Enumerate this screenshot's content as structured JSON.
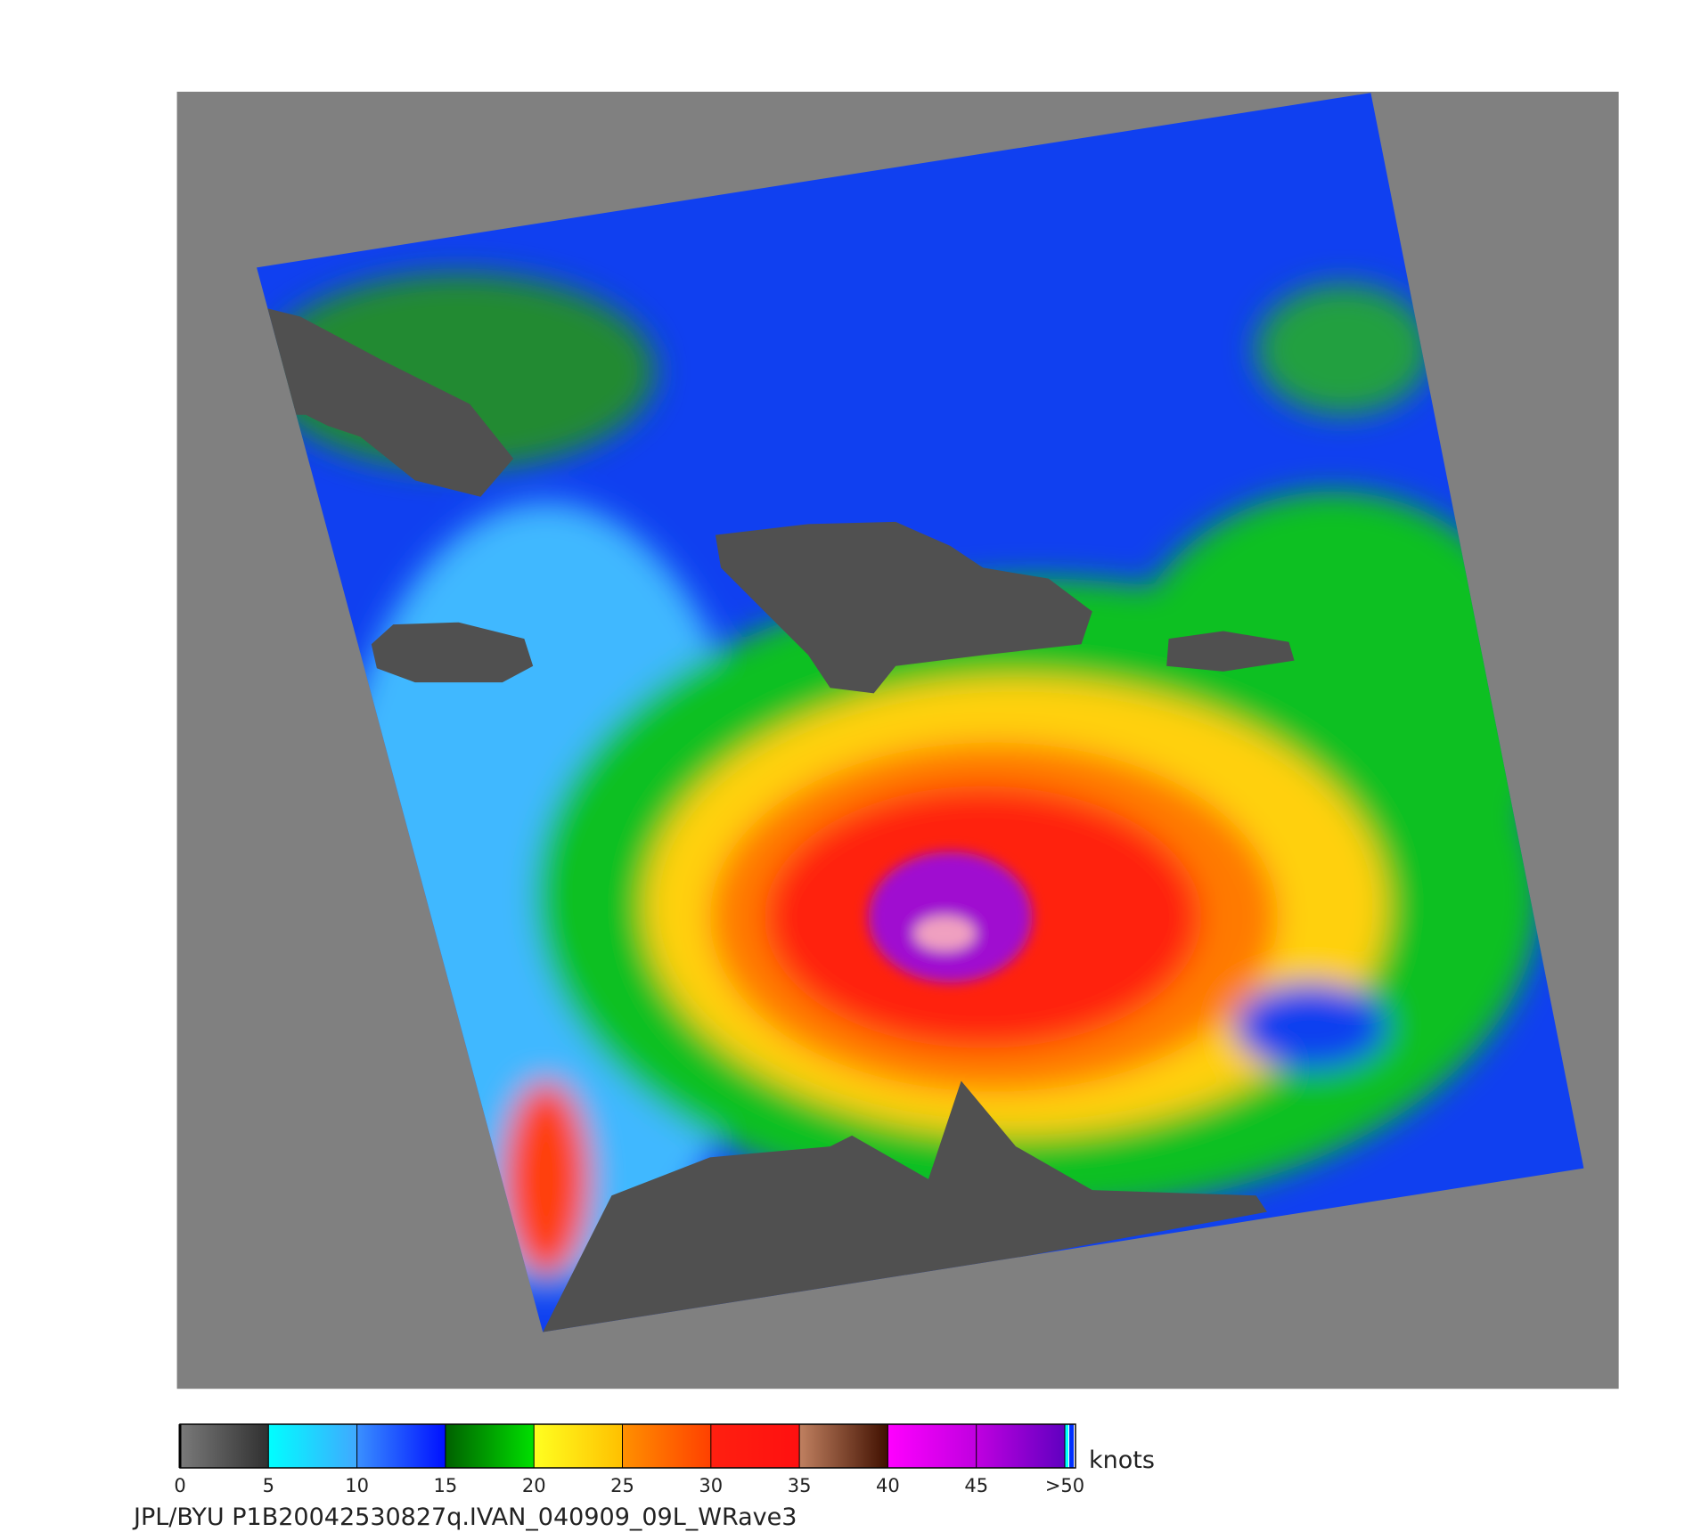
{
  "colorbar": {
    "ticks": [
      0,
      5,
      10,
      15,
      20,
      25,
      30,
      35,
      40,
      45,
      {
        "value": 50,
        "label": ">50"
      }
    ],
    "unit": "knots",
    "colors": [
      [
        "#7a7a7a",
        "#303030"
      ],
      [
        "#00ffff",
        "#40a8ff"
      ],
      [
        "#3a90ff",
        "#0010ff"
      ],
      [
        "#006000",
        "#00e000"
      ],
      [
        "#ffff20",
        "#ffc000"
      ],
      [
        "#ff9000",
        "#ff4000"
      ],
      [
        "#ff2010",
        "#ff1010"
      ],
      [
        "#c08060",
        "#401000"
      ],
      [
        "#ff00ff",
        "#c000e0"
      ],
      [
        "#c000e0",
        "#6000c0"
      ]
    ]
  },
  "caption": "JPL/BYU  P1B20042530827q.IVAN_040909_09L_WRave3"
}
